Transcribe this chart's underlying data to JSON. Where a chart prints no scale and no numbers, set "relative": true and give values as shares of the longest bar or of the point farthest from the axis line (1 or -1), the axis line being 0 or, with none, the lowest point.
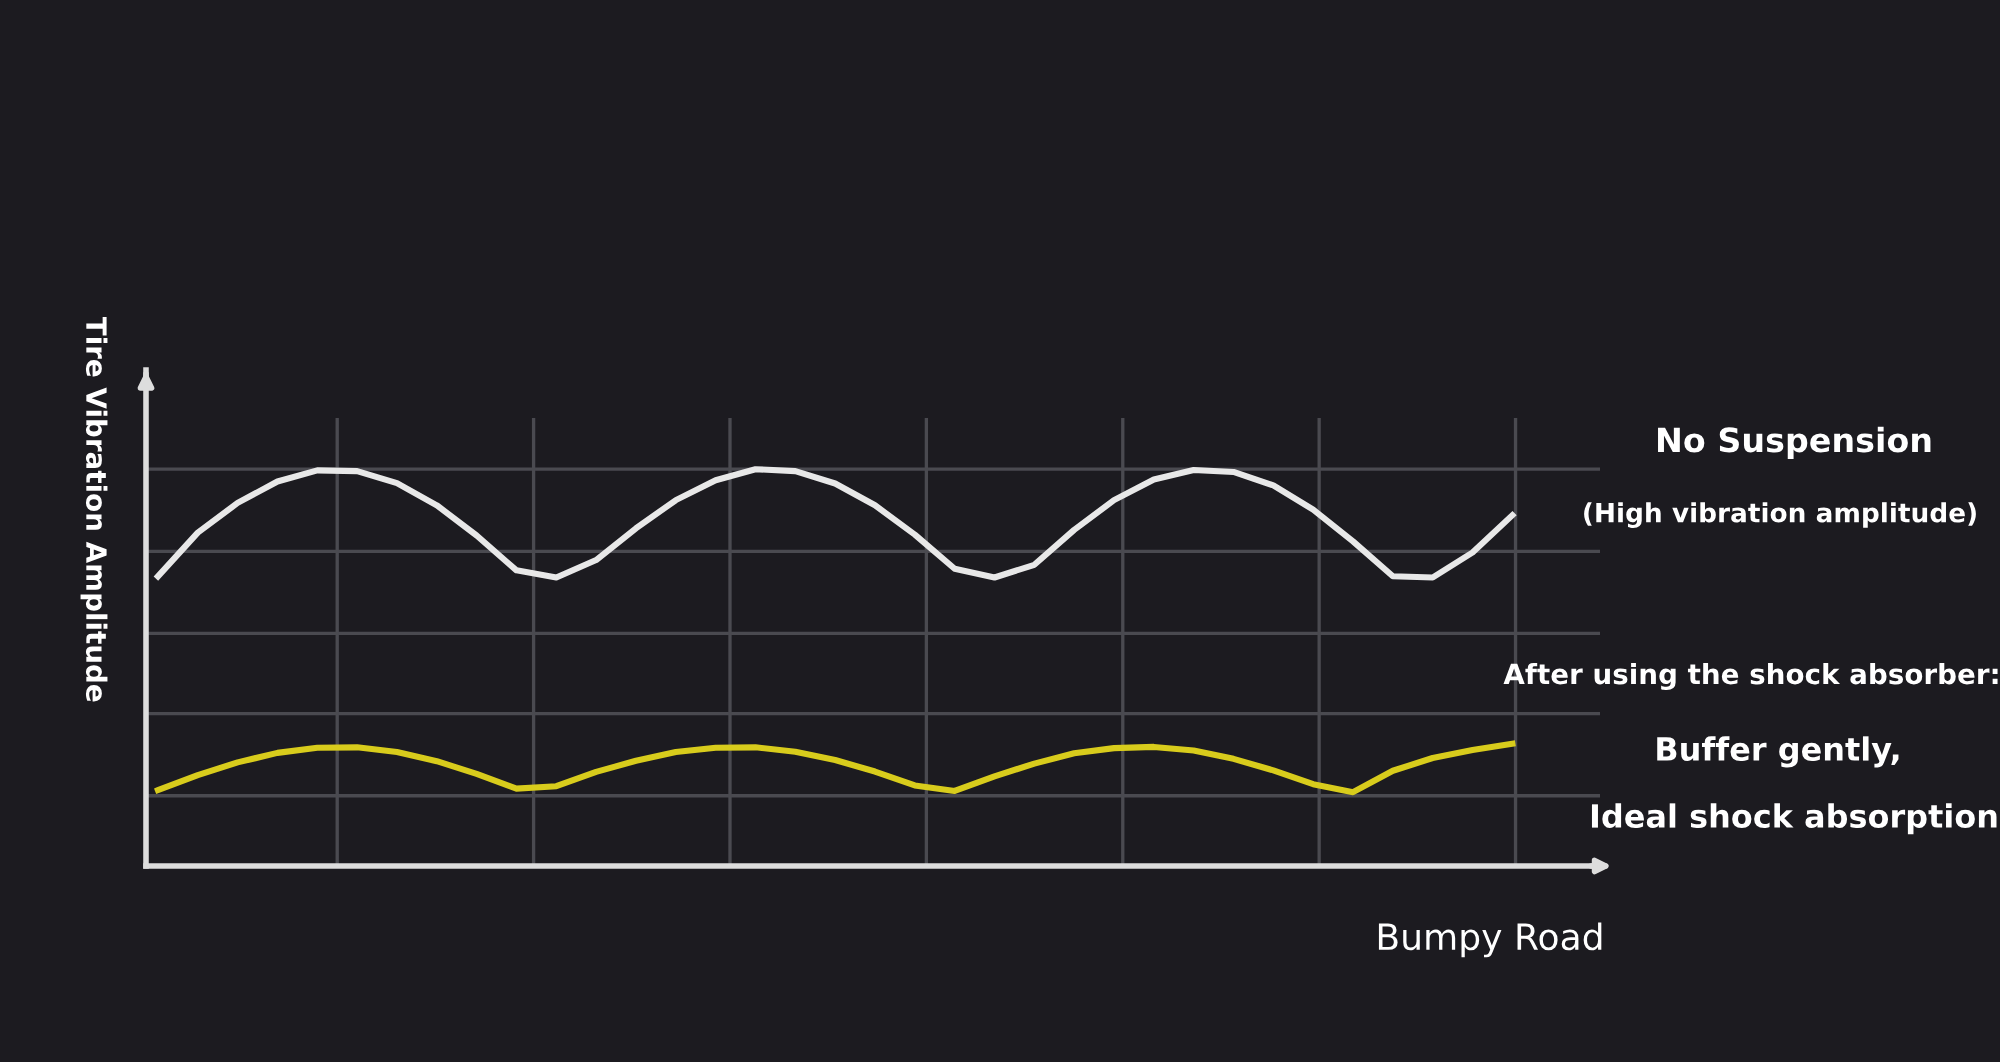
{
  "chart_data": {
    "type": "line",
    "relative": true,
    "xlabel": "Bumpy Road",
    "ylabel": "Tire Vibration Amplitude",
    "grid": true,
    "legend": false,
    "marker": "none",
    "line_style": "solid",
    "categories": [
      null,
      null,
      null,
      null,
      null,
      null,
      null,
      null,
      null,
      null,
      null,
      null,
      null,
      null,
      null,
      null,
      null,
      null,
      null,
      null,
      null,
      null,
      null,
      null,
      null,
      null,
      null,
      null,
      null,
      null,
      null,
      null,
      null,
      null,
      null
    ],
    "series": [
      {
        "color": "#e8e8e8",
        "values": [
          0.73,
          0.84,
          0.915,
          0.969,
          0.997,
          0.995,
          0.965,
          0.909,
          0.833,
          0.745,
          0.727,
          0.771,
          0.851,
          0.922,
          0.972,
          1,
          0.995,
          0.964,
          0.909,
          0.835,
          0.749,
          0.727,
          0.759,
          0.847,
          0.922,
          0.974,
          0.998,
          0.993,
          0.959,
          0.898,
          0.818,
          0.73,
          0.727,
          0.79,
          0.884
        ]
      },
      {
        "color": "#d8cc1c",
        "values": [
          0.191,
          0.229,
          0.261,
          0.285,
          0.298,
          0.299,
          0.287,
          0.264,
          0.232,
          0.195,
          0.201,
          0.237,
          0.265,
          0.287,
          0.298,
          0.299,
          0.288,
          0.267,
          0.238,
          0.203,
          0.189,
          0.226,
          0.258,
          0.284,
          0.297,
          0.3,
          0.291,
          0.27,
          0.241,
          0.206,
          0.186,
          0.24,
          0.272,
          0.292,
          0.308
        ]
      }
    ],
    "annotations": [
      "No Suspension",
      "(High vibration amplitude)",
      "After using the shock absorber:",
      "Buffer gently,",
      "Ideal shock absorption"
    ]
  }
}
